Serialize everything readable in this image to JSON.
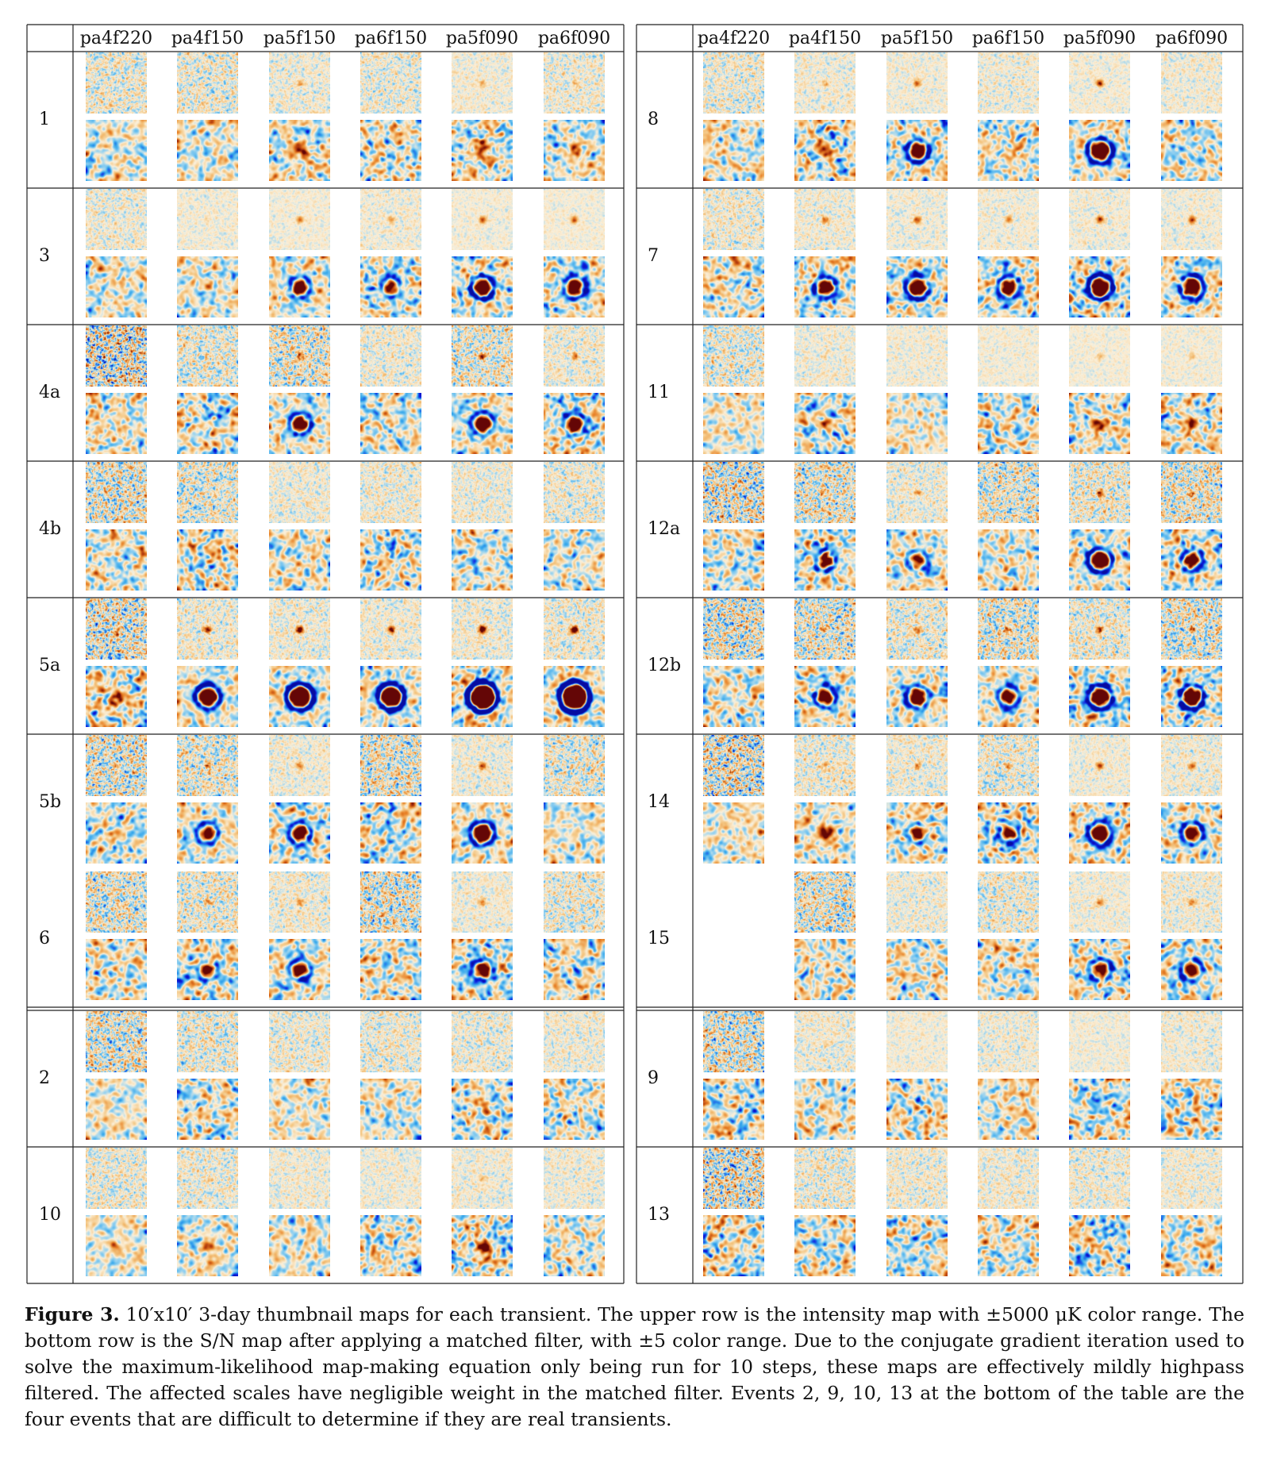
{
  "columns": [
    "pa4f220",
    "pa4f150",
    "pa5f150",
    "pa6f150",
    "pa5f090",
    "pa6f090"
  ],
  "left_table": {
    "upper_block": [
      "1",
      "3",
      "4a",
      "4b",
      "5a",
      "5b",
      "6"
    ],
    "lower_block": [
      "2",
      "10"
    ]
  },
  "right_table": {
    "upper_block": [
      "8",
      "7",
      "11",
      "12a",
      "12b",
      "14",
      "15"
    ],
    "lower_block": [
      "9",
      "13"
    ]
  },
  "missing_thumbnails": [
    {
      "event": "15",
      "column": "pa4f220"
    }
  ],
  "thumbnail_rows": [
    "intensity map",
    "S/N map"
  ],
  "colors": {
    "deep_blue": "#0a18d8",
    "light_blue": "#36a8ec",
    "cream": "#fbeed8",
    "orange": "#e8892a",
    "dark_red": "#6a0606"
  },
  "caption": {
    "label": "Figure 3.",
    "text": "10′x10′ 3-day thumbnail maps for each transient. The upper row is the intensity map with ±5000 μK color range. The bottom row is the S/N map after applying a matched filter, with ±5 color range. Due to the conjugate gradient iteration used to solve the maximum-likelihood map-making equation only being run for 10 steps, these maps are effectively mildly highpass filtered. The affected scales have negligible weight in the matched filter. Events 2, 9, 10, 13 at the bottom of the table are the four events that are difficult to determine if they are real transients."
  }
}
